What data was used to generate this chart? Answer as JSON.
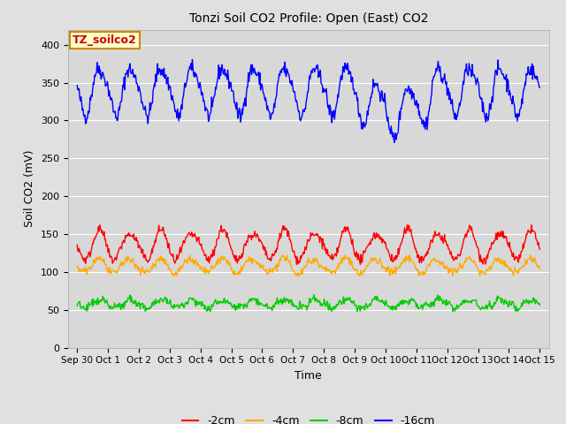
{
  "title": "Tonzi Soil CO2 Profile: Open (East) CO2",
  "ylabel": "Soil CO2 (mV)",
  "xlabel": "Time",
  "annotation": "TZ_soilco2",
  "annotation_color": "#cc0000",
  "annotation_bg": "#ffffcc",
  "annotation_border": "#cc8800",
  "xlim_start": -0.3,
  "xlim_end": 15.3,
  "ylim": [
    0,
    420
  ],
  "yticks": [
    0,
    50,
    100,
    150,
    200,
    250,
    300,
    350,
    400
  ],
  "xtick_labels": [
    "Sep 30",
    "Oct 1",
    "Oct 2",
    "Oct 3",
    "Oct 4",
    "Oct 5",
    "Oct 6",
    "Oct 7",
    "Oct 8",
    "Oct 9",
    "Oct 10",
    "Oct 11",
    "Oct 12",
    "Oct 13",
    "Oct 14",
    "Oct 15"
  ],
  "legend_labels": [
    "-2cm",
    "-4cm",
    "-8cm",
    "-16cm"
  ],
  "legend_colors": [
    "#ff0000",
    "#ffaa00",
    "#00cc00",
    "#0000ff"
  ],
  "bg_color": "#e0e0e0",
  "plot_bg": "#d8d8d8",
  "line_width": 1.0,
  "n_points": 720,
  "days": 15
}
